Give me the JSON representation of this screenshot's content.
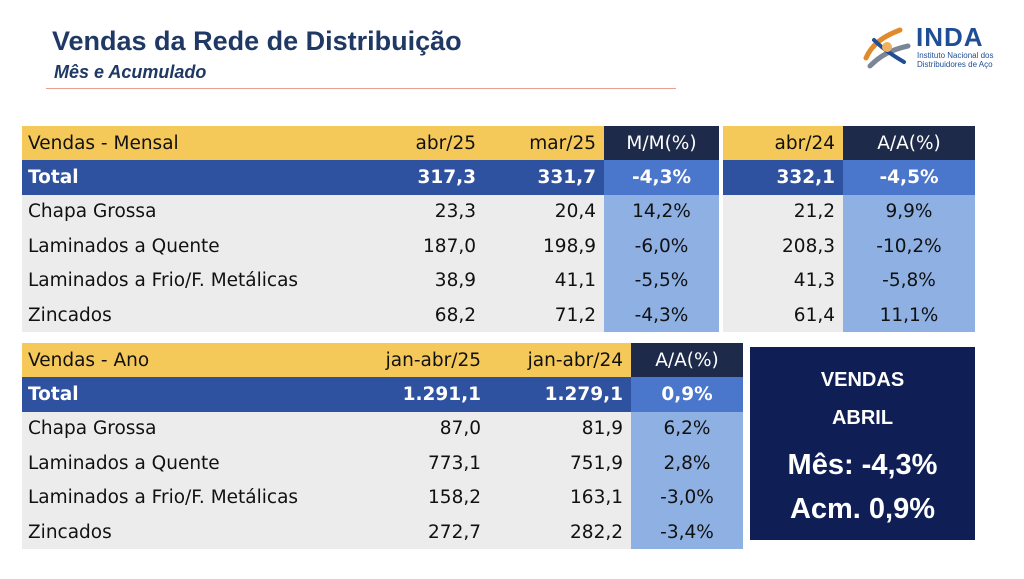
{
  "header": {
    "title": "Vendas da Rede de Distribuição",
    "subtitle": "Mês e Acumulado"
  },
  "logo": {
    "name": "INDA",
    "sub_line1": "Instituto Nacional dos",
    "sub_line2": "Distribuidores de Aço"
  },
  "monthly_table": {
    "columns": [
      "Vendas - Mensal",
      "abr/25",
      "mar/25",
      "M/M(%)",
      "abr/24",
      "A/A(%)"
    ],
    "rows": [
      [
        "Total",
        "317,3",
        "331,7",
        "-4,3%",
        "332,1",
        "-4,5%"
      ],
      [
        "Chapa Grossa",
        "23,3",
        "20,4",
        "14,2%",
        "21,2",
        "9,9%"
      ],
      [
        "Laminados a Quente",
        "187,0",
        "198,9",
        "-6,0%",
        "208,3",
        "-10,2%"
      ],
      [
        "Laminados a Frio/F. Metálicas",
        "38,9",
        "41,1",
        "-5,5%",
        "41,3",
        "-5,8%"
      ],
      [
        "Zincados",
        "68,2",
        "71,2",
        "-4,3%",
        "61,4",
        "11,1%"
      ]
    ]
  },
  "annual_table": {
    "columns": [
      "Vendas - Ano",
      "jan-abr/25",
      "jan-abr/24",
      "A/A(%)"
    ],
    "rows": [
      [
        "Total",
        "1.291,1",
        "1.279,1",
        "0,9%"
      ],
      [
        "Chapa Grossa",
        "87,0",
        "81,9",
        "6,2%"
      ],
      [
        "Laminados a Quente",
        "773,1",
        "751,9",
        "2,8%"
      ],
      [
        "Laminados a Frio/F. Metálicas",
        "158,2",
        "163,1",
        "-3,0%"
      ],
      [
        "Zincados",
        "272,7",
        "282,2",
        "-3,4%"
      ]
    ]
  },
  "summary_box": {
    "title_line1": "VENDAS",
    "title_line2": "ABRIL",
    "month_line": "Mês: -4,3%",
    "accum_line": "Acm. 0,9%"
  },
  "colors": {
    "title": "#1f3864",
    "header_yellow": "#f5c85a",
    "total_row_blue": "#2f52a0",
    "pct_column_light": "#8eb0e3",
    "pct_header_dark": "#1e2a4a",
    "summary_box": "#0f1f56"
  }
}
